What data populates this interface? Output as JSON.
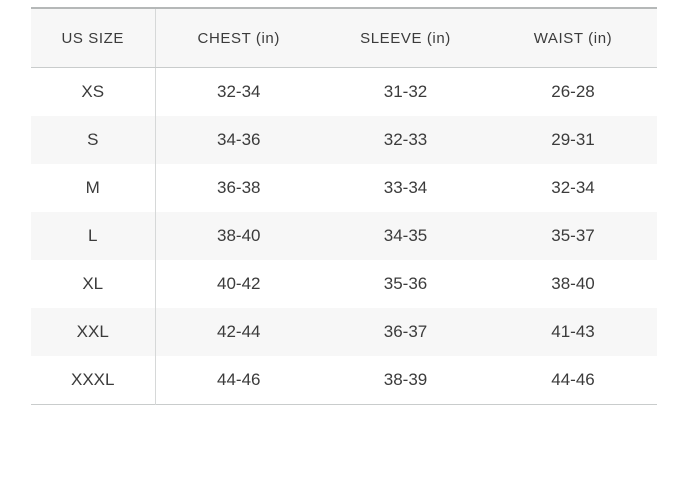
{
  "size_chart": {
    "columns": [
      "US SIZE",
      "CHEST (in)",
      "SLEEVE (in)",
      "WAIST (in)"
    ],
    "rows": [
      {
        "size": "XS",
        "chest": "32-34",
        "sleeve": "31-32",
        "waist": "26-28"
      },
      {
        "size": "S",
        "chest": "34-36",
        "sleeve": "32-33",
        "waist": "29-31"
      },
      {
        "size": "M",
        "chest": "36-38",
        "sleeve": "33-34",
        "waist": "32-34"
      },
      {
        "size": "L",
        "chest": "38-40",
        "sleeve": "34-35",
        "waist": "35-37"
      },
      {
        "size": "XL",
        "chest": "40-42",
        "sleeve": "35-36",
        "waist": "38-40"
      },
      {
        "size": "XXL",
        "chest": "42-44",
        "sleeve": "36-37",
        "waist": "41-43"
      },
      {
        "size": "XXXL",
        "chest": "44-46",
        "sleeve": "38-39",
        "waist": "44-46"
      }
    ],
    "colors": {
      "alt_row_background": "#f7f7f7",
      "top_border": "#b5b8b8",
      "rule_border": "#c9cccc",
      "column_divider": "#d6d8d8",
      "text": "#3b3b3b"
    }
  }
}
